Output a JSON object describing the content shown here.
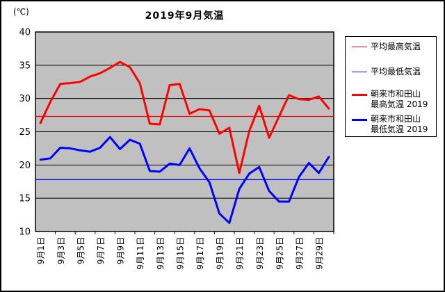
{
  "window": {
    "title": "2019年9月気温"
  },
  "unit_label": "(℃)",
  "legend": {
    "items": [
      {
        "line1": "平均最高気温",
        "line2": "",
        "color": "#ff0000",
        "thick": false
      },
      {
        "line1": "平均最低気温",
        "line2": "",
        "color": "#0000ff",
        "thick": false
      },
      {
        "line1": "朝来市和田山",
        "line2": "最高気温 2019",
        "color": "#ff0000",
        "thick": true
      },
      {
        "line1": "朝来市和田山",
        "line2": "最低気温 2019",
        "color": "#0000ff",
        "thick": true
      }
    ]
  },
  "chart_data": {
    "type": "line",
    "title": "2019年9月気温",
    "ylabel": "(℃)",
    "ylim": [
      10,
      40
    ],
    "yticks": [
      10,
      15,
      20,
      25,
      30,
      35,
      40
    ],
    "grid": true,
    "plot_bg": "#c0c0c0",
    "n_days": 30,
    "x_tick_labels": [
      "9月1日",
      "9月3日",
      "9月5日",
      "9月7日",
      "9月9日",
      "9月11日",
      "9月13日",
      "9月15日",
      "9月17日",
      "9月19日",
      "9月21日",
      "9月23日",
      "9月25日",
      "9月27日",
      "9月29日"
    ],
    "legend_position": "right",
    "series": [
      {
        "name": "平均最高気温",
        "color": "#ff0000",
        "width": 1.3,
        "type": "constant",
        "value": 27.3
      },
      {
        "name": "平均最低気温",
        "color": "#0000ff",
        "width": 1.3,
        "type": "constant",
        "value": 17.8
      },
      {
        "name": "朝来市和田山 最高気温2019",
        "color": "#ff0000",
        "width": 3,
        "type": "daily",
        "values": [
          26.3,
          29.5,
          32.2,
          32.3,
          32.5,
          33.3,
          33.8,
          34.6,
          35.5,
          34.7,
          32.3,
          26.2,
          26.1,
          32.0,
          32.2,
          27.7,
          28.4,
          28.2,
          24.7,
          25.6,
          18.8,
          25.1,
          28.9,
          24.1,
          27.3,
          30.5,
          29.9,
          29.8,
          30.3,
          28.5
        ]
      },
      {
        "name": "朝来市和田山 最低気温2019",
        "color": "#0000ff",
        "width": 3,
        "type": "daily",
        "values": [
          20.8,
          21.0,
          22.6,
          22.5,
          22.2,
          22.0,
          22.6,
          24.2,
          22.4,
          23.8,
          23.2,
          19.1,
          19.0,
          20.2,
          20.0,
          22.5,
          19.5,
          17.4,
          12.7,
          11.3,
          16.4,
          18.7,
          19.7,
          16.1,
          14.5,
          14.5,
          18.2,
          20.3,
          18.8,
          21.2
        ]
      }
    ]
  }
}
